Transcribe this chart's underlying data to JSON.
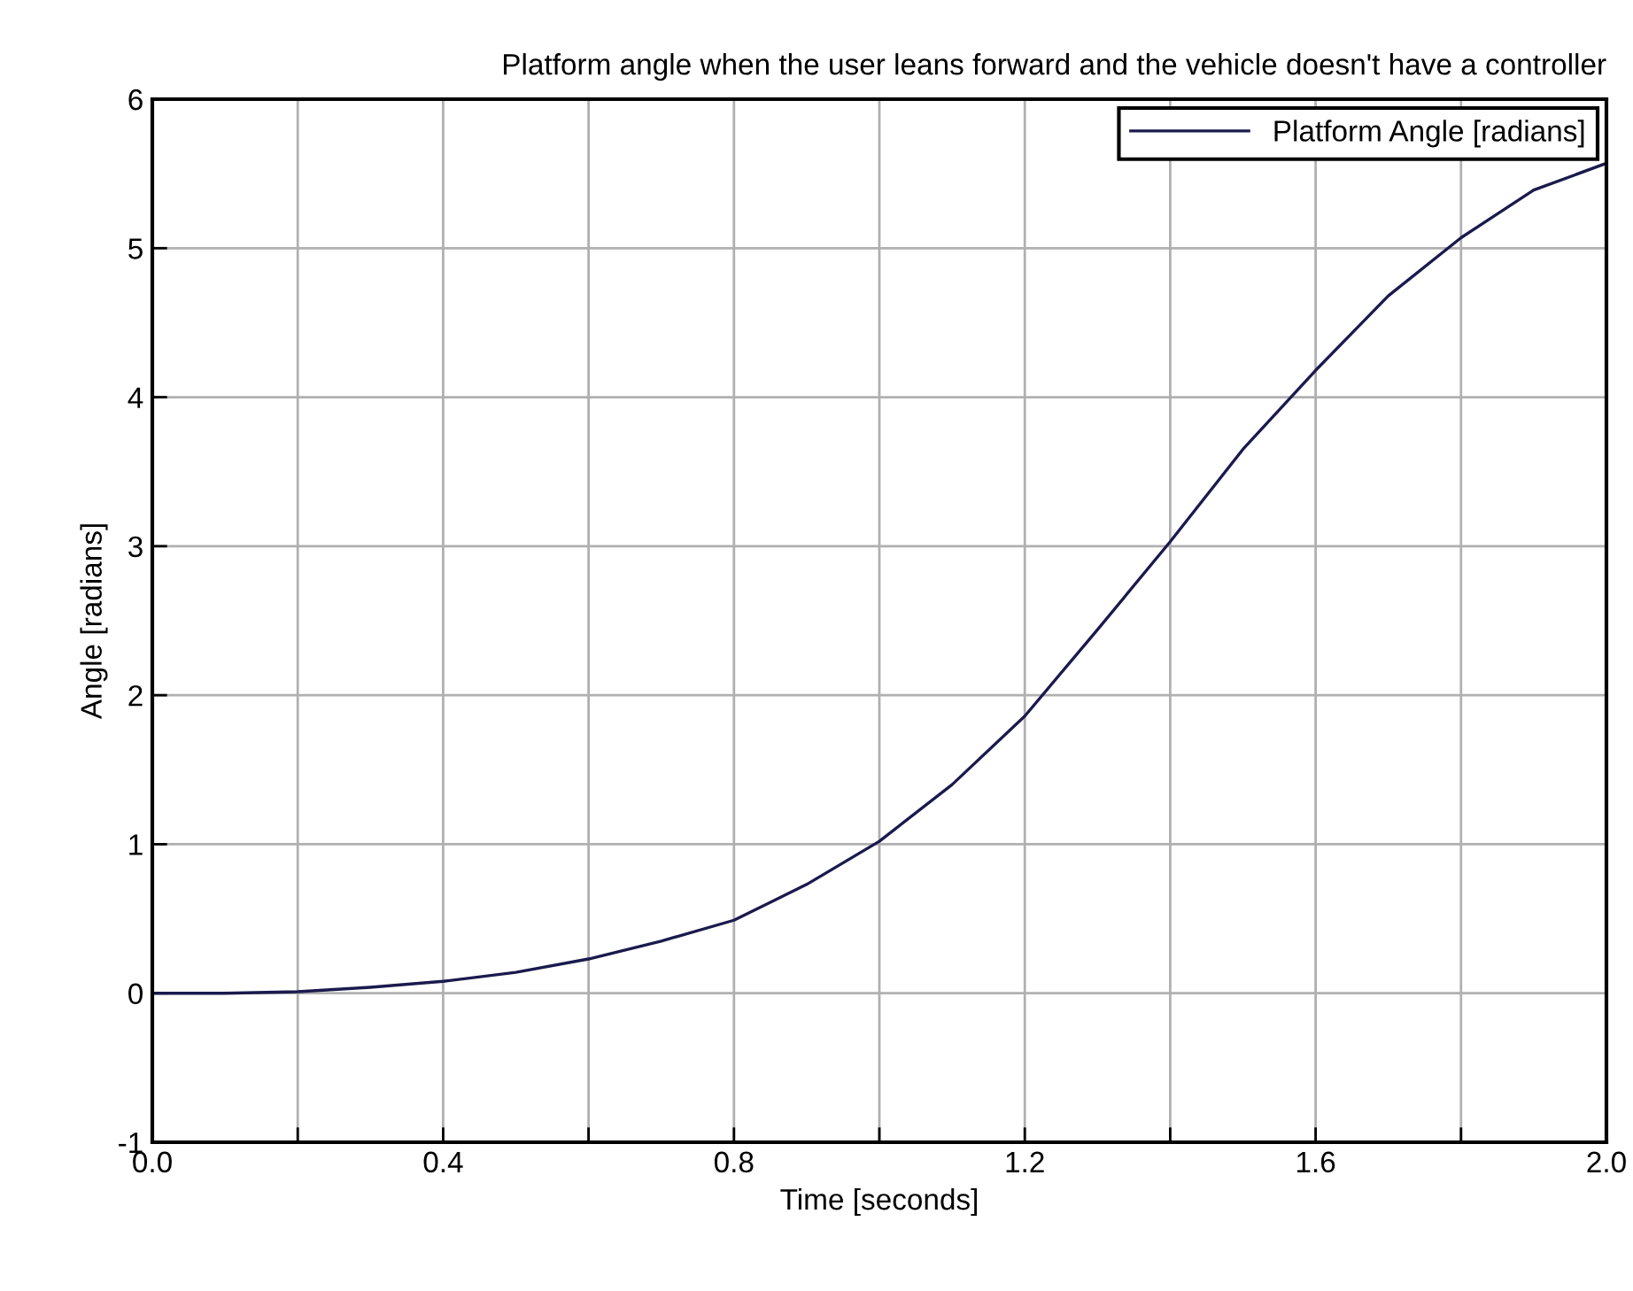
{
  "chart_data": {
    "type": "line",
    "title": "Platform angle when the user leans forward and the vehicle doesn't have a controller",
    "xlabel": "Time [seconds]",
    "ylabel": "Angle [radians]",
    "x": [
      0,
      0.1,
      0.2,
      0.3,
      0.4,
      0.5,
      0.6,
      0.7,
      0.8,
      0.9,
      1.0,
      1.1,
      1.2,
      1.3,
      1.4,
      1.5,
      1.6,
      1.7,
      1.8,
      1.9,
      2.0
    ],
    "series": [
      {
        "name": "Platform Angle [radians]",
        "color": "#1a1a4e",
        "values": [
          0,
          0.0,
          0.01,
          0.04,
          0.08,
          0.14,
          0.23,
          0.35,
          0.49,
          0.73,
          1.02,
          1.4,
          1.86,
          2.44,
          3.03,
          3.65,
          4.18,
          4.68,
          5.07,
          5.39,
          5.57
        ]
      }
    ],
    "xlim": [
      0,
      2.0
    ],
    "ylim": [
      -1,
      6
    ],
    "xticks": [
      {
        "value": 0,
        "label": "0.0"
      },
      {
        "value": 0.2,
        "label": null
      },
      {
        "value": 0.4,
        "label": "0.4"
      },
      {
        "value": 0.6,
        "label": null
      },
      {
        "value": 0.8,
        "label": "0.8"
      },
      {
        "value": 1.0,
        "label": null
      },
      {
        "value": 1.2,
        "label": "1.2"
      },
      {
        "value": 1.4,
        "label": null
      },
      {
        "value": 1.6,
        "label": "1.6"
      },
      {
        "value": 1.8,
        "label": null
      },
      {
        "value": 2.0,
        "label": "2.0"
      }
    ],
    "yticks": [
      -1,
      0,
      1,
      2,
      3,
      4,
      5,
      6
    ],
    "grid": true,
    "legend": "top right",
    "marker": "none",
    "line_style": "solid"
  }
}
